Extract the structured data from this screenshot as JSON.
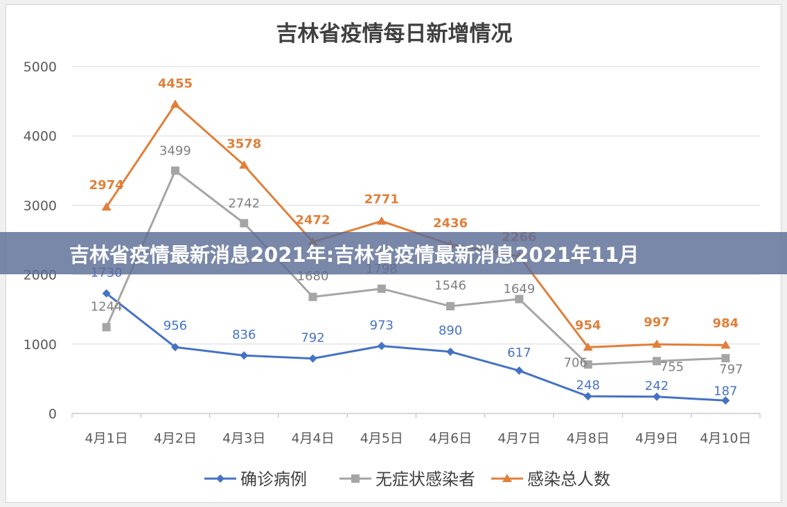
{
  "banner": {
    "text": "吉林省疫情最新消息2021年:吉林省疫情最新消息2021年11月"
  },
  "chart_data": {
    "type": "line",
    "title": "吉林省疫情每日新增情况",
    "categories": [
      "4月1日",
      "4月2日",
      "4月3日",
      "4月4日",
      "4月5日",
      "4月6日",
      "4月7日",
      "4月8日",
      "4月9日",
      "4月10日"
    ],
    "ylim": [
      0,
      5000
    ],
    "yticks": [
      0,
      1000,
      2000,
      3000,
      4000,
      5000
    ],
    "grid": true,
    "legend_position": "bottom",
    "series": [
      {
        "name": "确诊病例",
        "color": "#4472c4",
        "marker": "diamond",
        "values": [
          1730,
          956,
          836,
          792,
          973,
          890,
          617,
          248,
          242,
          187
        ]
      },
      {
        "name": "无症状感染者",
        "color": "#a5a5a5",
        "marker": "square",
        "values": [
          1244,
          3499,
          2742,
          1680,
          1798,
          1546,
          1649,
          706,
          755,
          797
        ]
      },
      {
        "name": "感染总人数",
        "color": "#e07f3a",
        "marker": "triangle",
        "values": [
          2974,
          4455,
          3578,
          2472,
          2771,
          2436,
          2266,
          954,
          997,
          984
        ]
      }
    ]
  }
}
